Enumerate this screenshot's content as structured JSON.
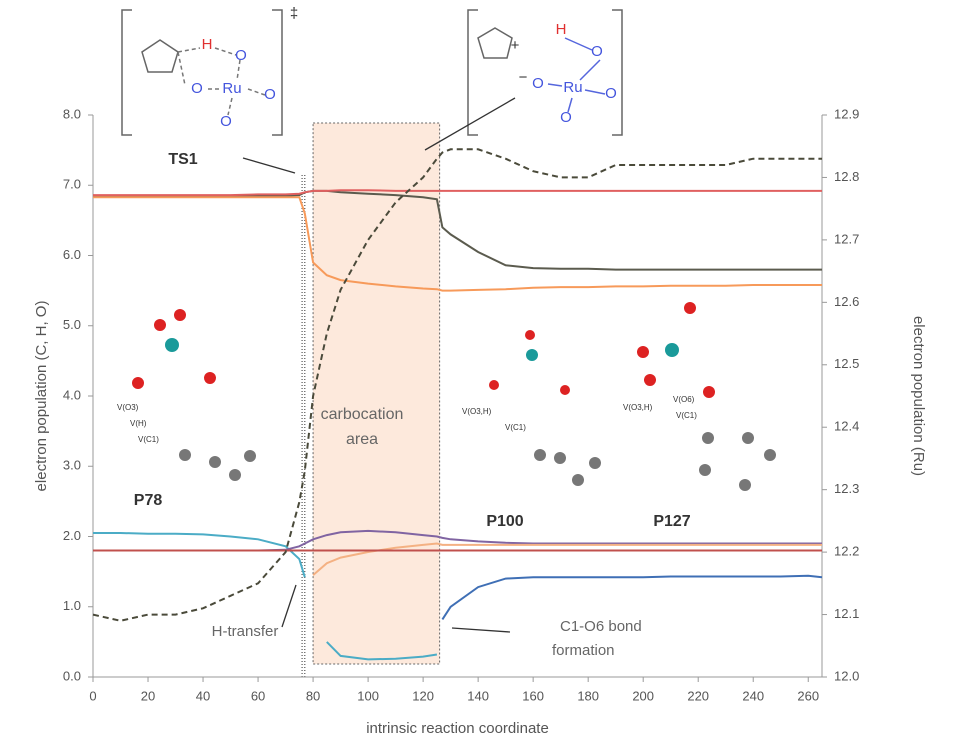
{
  "chart_data": {
    "type": "line",
    "x": [
      0,
      10,
      20,
      30,
      40,
      50,
      60,
      70,
      75,
      77,
      80,
      85,
      90,
      100,
      110,
      120,
      125,
      127,
      130,
      140,
      150,
      160,
      170,
      180,
      190,
      200,
      210,
      220,
      230,
      240,
      250,
      260,
      265
    ],
    "xlim": [
      0,
      265
    ],
    "xticks": [
      0,
      20,
      40,
      60,
      80,
      100,
      120,
      140,
      160,
      180,
      200,
      220,
      240,
      260
    ],
    "ylim": [
      0,
      8
    ],
    "yticks": [
      {
        "value": 0,
        "label": "0.0"
      },
      {
        "value": 1,
        "label": "1.0"
      },
      {
        "value": 2,
        "label": "2.0"
      },
      {
        "value": 3,
        "label": "3.0"
      },
      {
        "value": 4,
        "label": "4.0"
      },
      {
        "value": 5,
        "label": "5.0"
      },
      {
        "value": 6,
        "label": "6.0"
      },
      {
        "value": 7,
        "label": "7.0"
      },
      {
        "value": 8,
        "label": "8.0"
      }
    ],
    "y2lim": [
      12,
      12.9
    ],
    "y2ticks": [
      {
        "value": 12,
        "label": "12.0"
      },
      12.1,
      12.2,
      12.3,
      12.4,
      12.5,
      12.6,
      12.7,
      12.8,
      12.9
    ],
    "xlabel": "intrinsic reaction coordinate",
    "ylabel": "electron population (C, H, O)",
    "y2label": "electron population (Ru)",
    "highlight": [
      80,
      126
    ],
    "ts_lines": [
      76,
      77
    ],
    "series": [
      {
        "color": "#5b5b4e",
        "values": [
          6.85,
          6.85,
          6.85,
          6.85,
          6.85,
          6.85,
          6.85,
          6.85,
          6.86,
          6.9,
          6.92,
          6.92,
          6.9,
          6.88,
          6.86,
          6.83,
          6.8,
          6.4,
          6.3,
          6.05,
          5.86,
          5.82,
          5.81,
          5.81,
          5.8,
          5.8,
          5.8,
          5.8,
          5.8,
          5.8,
          5.8,
          5.8,
          5.8
        ]
      },
      {
        "color": "#e06060",
        "values": [
          6.86,
          6.86,
          6.86,
          6.86,
          6.86,
          6.86,
          6.87,
          6.87,
          6.88,
          6.9,
          6.92,
          6.92,
          6.93,
          6.93,
          6.92,
          6.92,
          6.92,
          6.92,
          6.92,
          6.92,
          6.92,
          6.92,
          6.92,
          6.92,
          6.92,
          6.92,
          6.92,
          6.92,
          6.92,
          6.92,
          6.92,
          6.92,
          6.92
        ]
      },
      {
        "color": "#f79a5a",
        "values": [
          6.83,
          6.83,
          6.83,
          6.83,
          6.83,
          6.83,
          6.83,
          6.83,
          6.83,
          6.6,
          5.9,
          5.72,
          5.65,
          5.6,
          5.56,
          5.53,
          5.52,
          5.5,
          5.5,
          5.51,
          5.52,
          5.54,
          5.55,
          5.55,
          5.56,
          5.56,
          5.57,
          5.57,
          5.57,
          5.58,
          5.58,
          5.58,
          5.58
        ]
      },
      {
        "color": "#4bacc6",
        "values": [
          2.05,
          2.05,
          2.04,
          2.04,
          2.03,
          2.0,
          1.96,
          1.86,
          1.68,
          1.42,
          null,
          0.5,
          0.3,
          0.25,
          0.26,
          0.29,
          0.32,
          null,
          null,
          null,
          null,
          null,
          null,
          null,
          null,
          null,
          null,
          null,
          null,
          null,
          null,
          null,
          null
        ]
      },
      {
        "color": "#3f6fb5",
        "values": [
          null,
          null,
          null,
          null,
          null,
          null,
          null,
          null,
          null,
          null,
          null,
          null,
          null,
          null,
          null,
          null,
          null,
          0.82,
          1.0,
          1.28,
          1.4,
          1.42,
          1.42,
          1.42,
          1.42,
          1.42,
          1.43,
          1.43,
          1.43,
          1.43,
          1.43,
          1.44,
          1.42
        ]
      },
      {
        "color": "#8064a2",
        "values": [
          1.8,
          1.8,
          1.8,
          1.8,
          1.8,
          1.8,
          1.8,
          1.81,
          1.86,
          1.9,
          1.96,
          2.02,
          2.06,
          2.08,
          2.06,
          2.02,
          2.0,
          1.98,
          1.96,
          1.93,
          1.91,
          1.9,
          1.9,
          1.9,
          1.9,
          1.9,
          1.9,
          1.9,
          1.9,
          1.9,
          1.9,
          1.9,
          1.9
        ]
      },
      {
        "color": "#f4b183",
        "values": [
          null,
          null,
          null,
          null,
          null,
          null,
          null,
          null,
          null,
          null,
          1.45,
          1.62,
          1.7,
          1.78,
          1.84,
          1.88,
          1.9,
          1.88,
          1.88,
          1.88,
          1.88,
          1.88,
          1.88,
          1.88,
          1.88,
          1.88,
          1.88,
          1.88,
          1.88,
          1.88,
          1.88,
          1.88,
          1.88
        ]
      },
      {
        "color": "#c0504d",
        "values": [
          1.8,
          1.8,
          1.8,
          1.8,
          1.8,
          1.8,
          1.8,
          1.8,
          1.8,
          1.8,
          1.8,
          1.8,
          1.8,
          1.8,
          1.8,
          1.8,
          1.8,
          1.8,
          1.8,
          1.8,
          1.8,
          1.8,
          1.8,
          1.8,
          1.8,
          1.8,
          1.8,
          1.8,
          1.8,
          1.8,
          1.8,
          1.8,
          1.8
        ]
      },
      {
        "color": "#4a4a3a",
        "axis": "y2",
        "dashed": true,
        "values": [
          12.1,
          12.09,
          12.1,
          12.1,
          12.11,
          12.13,
          12.15,
          12.2,
          12.28,
          12.33,
          12.45,
          12.55,
          12.62,
          12.7,
          12.76,
          12.8,
          12.83,
          12.84,
          12.845,
          12.845,
          12.83,
          12.81,
          12.8,
          12.8,
          12.82,
          12.82,
          12.82,
          12.82,
          12.82,
          12.83,
          12.83,
          12.83,
          12.83
        ]
      }
    ],
    "annotations": [
      "TS1",
      "carbocation",
      "area",
      "H-transfer",
      "C1-O6 bond",
      "formation",
      "P78",
      "P100",
      "P127"
    ],
    "labels": [
      "V(O3)",
      "V(H)",
      "V(C1)",
      "V(O3,H)",
      "V(C1)",
      "V(O3,H)",
      "V(O6)",
      "V(C1)"
    ],
    "structure_labels": [
      "H",
      "O",
      "O",
      "Ru",
      "O",
      "O",
      "‡",
      "+",
      "H",
      "−",
      "O",
      "O",
      "Ru",
      "O",
      "O"
    ]
  }
}
